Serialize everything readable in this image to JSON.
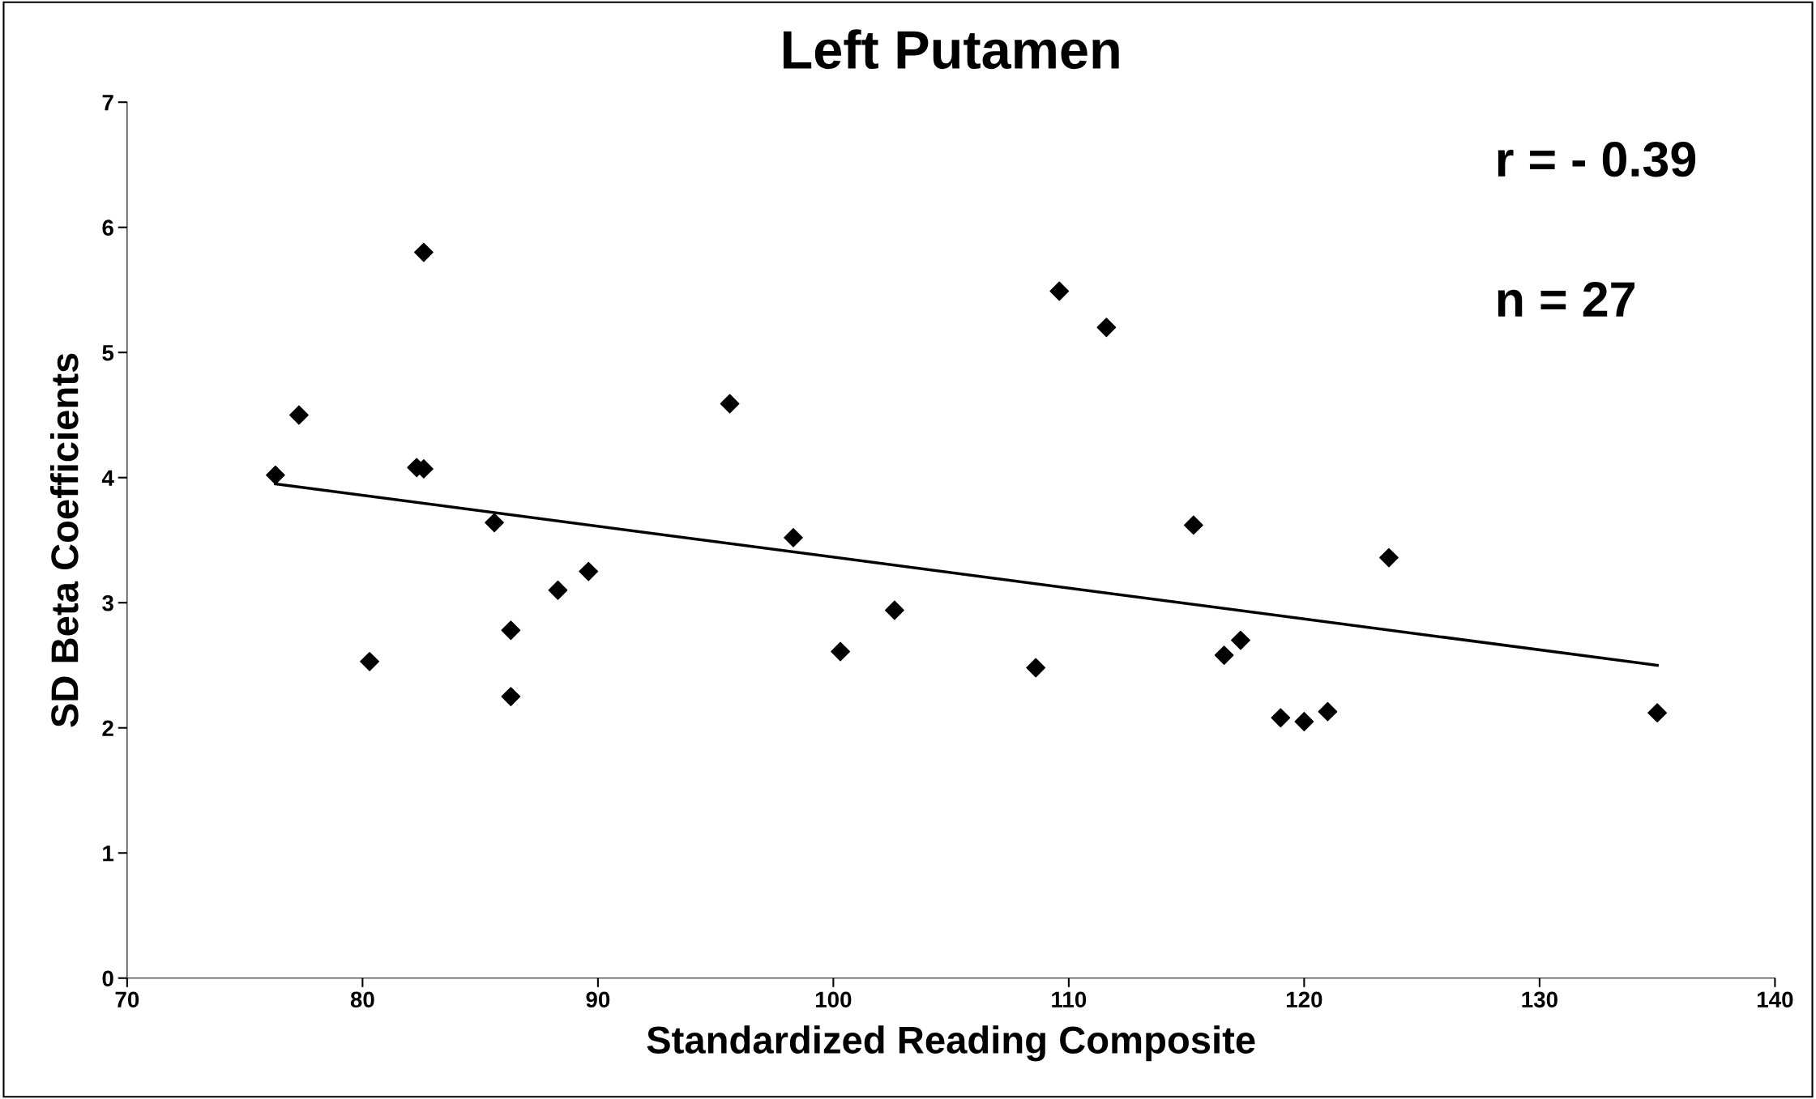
{
  "chart_data": {
    "type": "scatter",
    "title": "Left Putamen",
    "xlabel": "Standardized Reading Composite",
    "ylabel": "SD Beta Coefficients",
    "annotations": [
      "r = - 0.39",
      "n = 27"
    ],
    "xlim": [
      70,
      140
    ],
    "xticks": [
      70,
      80,
      90,
      100,
      110,
      120,
      130,
      140
    ],
    "ylim": [
      0,
      7
    ],
    "yticks": [
      0,
      1,
      2,
      3,
      4,
      5,
      6,
      7
    ],
    "grid": false,
    "legend": false,
    "marker": "diamond",
    "series": [
      {
        "color": "#000000",
        "x": [
          76.3,
          77.3,
          80.3,
          82.3,
          82.6,
          82.6,
          85.6,
          86.3,
          86.3,
          88.3,
          89.6,
          95.6,
          98.3,
          100.3,
          102.6,
          108.6,
          109.6,
          111.6,
          115.3,
          116.6,
          117.3,
          119.0,
          120.0,
          121.0,
          123.6,
          135.0
        ],
        "values": [
          4.02,
          4.5,
          2.53,
          4.08,
          4.07,
          5.8,
          3.64,
          2.78,
          2.25,
          3.1,
          3.25,
          4.59,
          3.52,
          2.61,
          2.94,
          2.48,
          5.49,
          5.2,
          3.62,
          2.58,
          2.7,
          2.08,
          2.05,
          2.13,
          3.36,
          2.12
        ]
      },
      {
        "type": "line",
        "color": "#000000",
        "marker": "none",
        "line_style": "solid",
        "x": [
          76.3,
          135.0
        ],
        "values": [
          3.95,
          2.5
        ]
      }
    ]
  }
}
